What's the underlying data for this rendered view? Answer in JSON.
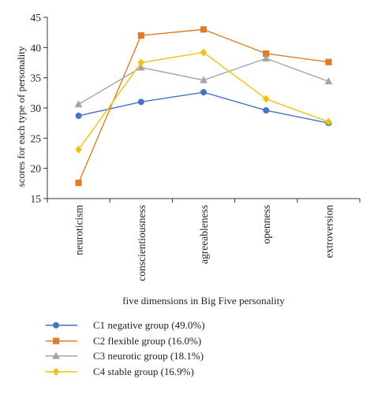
{
  "chart_data": {
    "type": "line",
    "categories": [
      "neuroticism",
      "conscientiousness",
      "agreeableness",
      "openness",
      "extroversion"
    ],
    "xlabel": "five dimensions in Big Five personality",
    "ylabel": "scores for each type of personality",
    "ylim": [
      15,
      45
    ],
    "yticks": [
      15,
      20,
      25,
      30,
      35,
      40,
      45
    ],
    "grid": false,
    "legend_position": "bottom",
    "series": [
      {
        "name": "C1 negative group (49.0%)",
        "color": "#4472C4",
        "marker": "circle",
        "values": [
          28.7,
          31.0,
          32.6,
          29.6,
          27.5
        ]
      },
      {
        "name": "C2 flexible group (16.0%)",
        "color": "#E07B2A",
        "marker": "square",
        "values": [
          17.6,
          42.0,
          43.0,
          39.0,
          37.6
        ]
      },
      {
        "name": "C3 neurotic group (18.1%)",
        "color": "#A5A5A5",
        "marker": "triangle",
        "values": [
          30.6,
          36.7,
          34.6,
          38.2,
          34.4
        ]
      },
      {
        "name": "C4 stable group (16.9%)",
        "color": "#F2C00F",
        "marker": "diamond",
        "values": [
          23.1,
          37.5,
          39.2,
          31.5,
          27.7
        ]
      }
    ]
  }
}
